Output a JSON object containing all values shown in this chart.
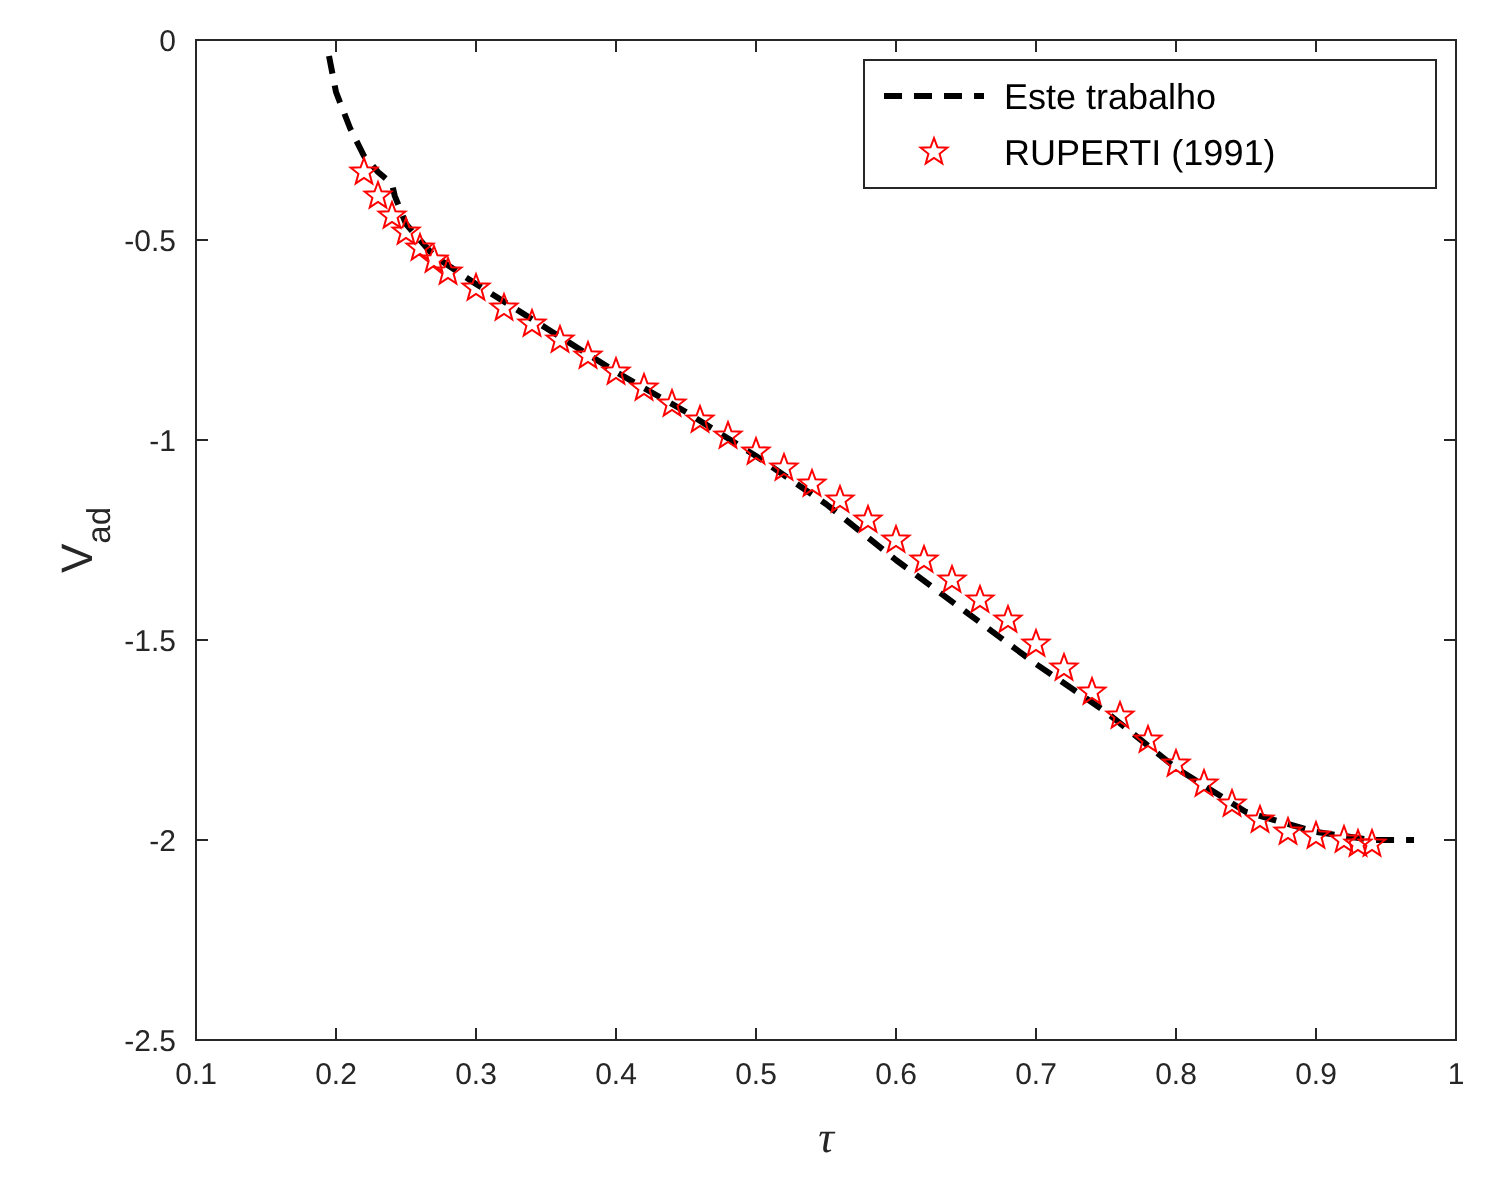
{
  "chart_data": {
    "type": "line",
    "xlabel": "τ",
    "ylabel": "V$_{ad}$",
    "xlim": [
      0.1,
      1
    ],
    "ylim": [
      -2.5,
      0
    ],
    "xticks": [
      0.1,
      0.2,
      0.3,
      0.4,
      0.5,
      0.6,
      0.7,
      0.8,
      0.9,
      1
    ],
    "yticks": [
      -2.5,
      -2,
      -1.5,
      -1,
      -0.5,
      0
    ],
    "grid": false,
    "legend": "top right",
    "series": [
      {
        "name": "Este trabalho",
        "color": "#000000",
        "line_style": "dashed",
        "marker": "none",
        "x": [
          0.195,
          0.2,
          0.21,
          0.22,
          0.23,
          0.24,
          0.242,
          0.25,
          0.27,
          0.3,
          0.35,
          0.4,
          0.45,
          0.5,
          0.55,
          0.6,
          0.65,
          0.7,
          0.75,
          0.8,
          0.85,
          0.9,
          0.94,
          0.97
        ],
        "values": [
          -0.04,
          -0.13,
          -0.22,
          -0.29,
          -0.33,
          -0.36,
          -0.39,
          -0.46,
          -0.54,
          -0.61,
          -0.72,
          -0.83,
          -0.93,
          -1.04,
          -1.16,
          -1.3,
          -1.43,
          -1.56,
          -1.68,
          -1.82,
          -1.93,
          -1.98,
          -2.0,
          -2.0
        ]
      },
      {
        "name": "RUPERTI (1991)",
        "color": "#ff0000",
        "type": "scatter",
        "marker": "star",
        "x": [
          0.22,
          0.23,
          0.24,
          0.25,
          0.26,
          0.27,
          0.28,
          0.3,
          0.32,
          0.34,
          0.36,
          0.38,
          0.4,
          0.42,
          0.44,
          0.46,
          0.48,
          0.5,
          0.52,
          0.54,
          0.56,
          0.58,
          0.6,
          0.62,
          0.64,
          0.66,
          0.68,
          0.7,
          0.72,
          0.74,
          0.76,
          0.78,
          0.8,
          0.82,
          0.84,
          0.86,
          0.88,
          0.9,
          0.92,
          0.93,
          0.94
        ],
        "values": [
          -0.33,
          -0.39,
          -0.44,
          -0.48,
          -0.52,
          -0.55,
          -0.58,
          -0.62,
          -0.67,
          -0.71,
          -0.75,
          -0.79,
          -0.83,
          -0.87,
          -0.91,
          -0.95,
          -0.99,
          -1.03,
          -1.07,
          -1.11,
          -1.15,
          -1.2,
          -1.25,
          -1.3,
          -1.35,
          -1.4,
          -1.45,
          -1.51,
          -1.57,
          -1.63,
          -1.69,
          -1.75,
          -1.81,
          -1.86,
          -1.91,
          -1.95,
          -1.98,
          -1.99,
          -2.0,
          -2.01,
          -2.01
        ]
      }
    ]
  }
}
